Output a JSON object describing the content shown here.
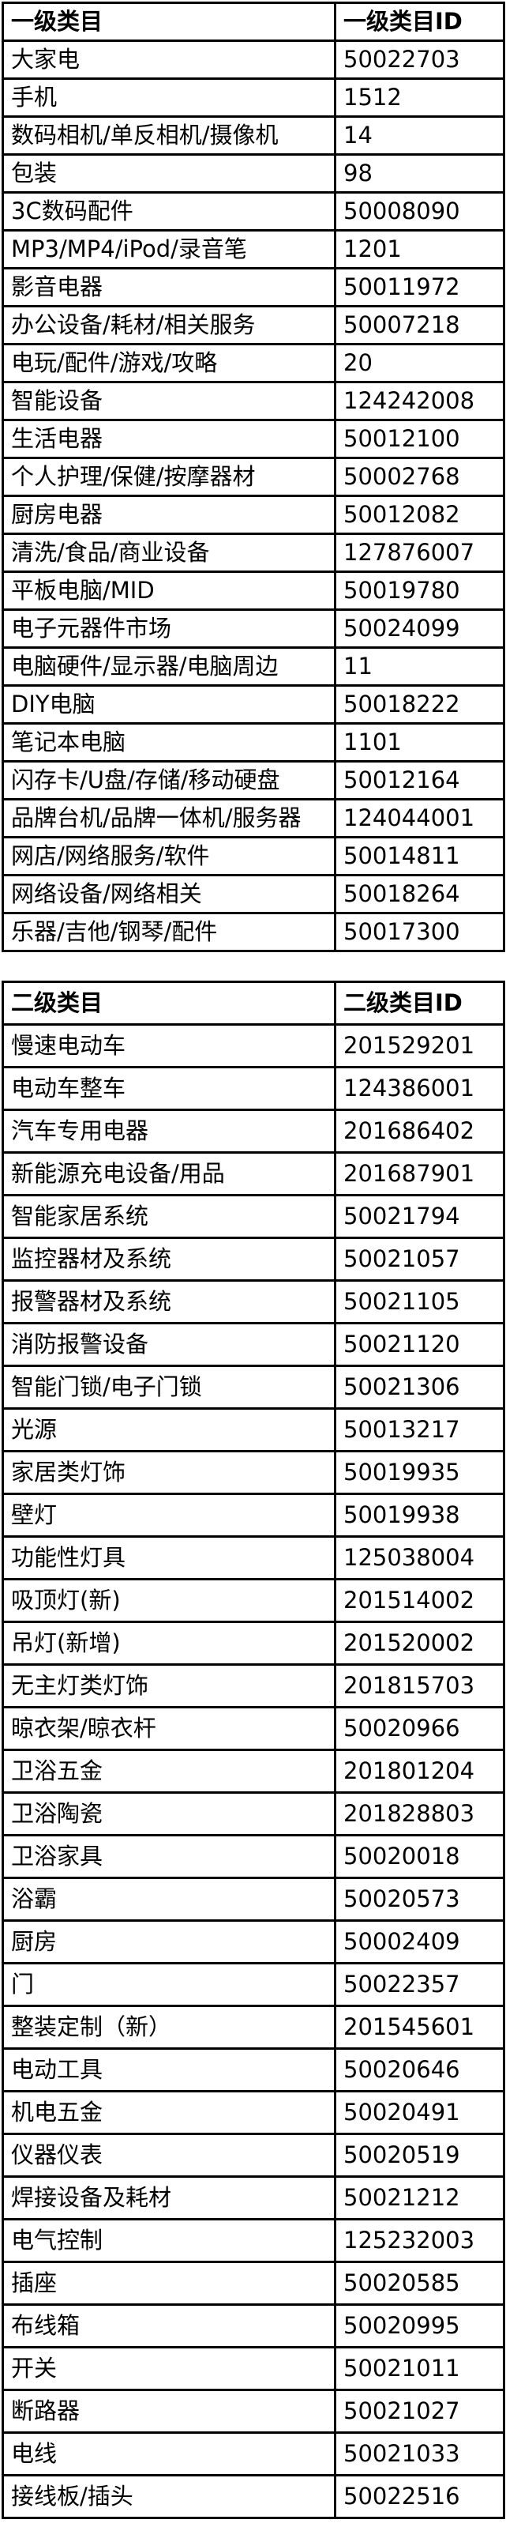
{
  "tables": [
    {
      "name_header": "一级类目",
      "id_header": "一级类目ID",
      "rows": [
        {
          "name": "大家电",
          "id": "50022703"
        },
        {
          "name": "手机",
          "id": "1512"
        },
        {
          "name": "数码相机/单反相机/摄像机",
          "id": "14"
        },
        {
          "name": "包装",
          "id": "98"
        },
        {
          "name": "3C数码配件",
          "id": "50008090"
        },
        {
          "name": "MP3/MP4/iPod/录音笔",
          "id": "1201"
        },
        {
          "name": "影音电器",
          "id": "50011972"
        },
        {
          "name": "办公设备/耗材/相关服务",
          "id": "50007218"
        },
        {
          "name": "电玩/配件/游戏/攻略",
          "id": "20"
        },
        {
          "name": "智能设备",
          "id": "124242008"
        },
        {
          "name": "生活电器",
          "id": "50012100"
        },
        {
          "name": "个人护理/保健/按摩器材",
          "id": "50002768"
        },
        {
          "name": "厨房电器",
          "id": "50012082"
        },
        {
          "name": "清洗/食品/商业设备",
          "id": "127876007"
        },
        {
          "name": "平板电脑/MID",
          "id": "50019780"
        },
        {
          "name": "电子元器件市场",
          "id": "50024099"
        },
        {
          "name": "电脑硬件/显示器/电脑周边",
          "id": "11"
        },
        {
          "name": "DIY电脑",
          "id": "50018222"
        },
        {
          "name": "笔记本电脑",
          "id": "1101"
        },
        {
          "name": "闪存卡/U盘/存储/移动硬盘",
          "id": "50012164"
        },
        {
          "name": "品牌台机/品牌一体机/服务器",
          "id": "124044001"
        },
        {
          "name": "网店/网络服务/软件",
          "id": "50014811"
        },
        {
          "name": "网络设备/网络相关",
          "id": "50018264"
        },
        {
          "name": "乐器/吉他/钢琴/配件",
          "id": "50017300"
        }
      ]
    },
    {
      "name_header": "二级类目",
      "id_header": "二级类目ID",
      "rows": [
        {
          "name": "慢速电动车",
          "id": "201529201"
        },
        {
          "name": "电动车整车",
          "id": "124386001"
        },
        {
          "name": "汽车专用电器",
          "id": "201686402"
        },
        {
          "name": "新能源充电设备/用品",
          "id": "201687901"
        },
        {
          "name": "智能家居系统",
          "id": "50021794"
        },
        {
          "name": "监控器材及系统",
          "id": "50021057"
        },
        {
          "name": "报警器材及系统",
          "id": "50021105"
        },
        {
          "name": "消防报警设备",
          "id": "50021120"
        },
        {
          "name": "智能门锁/电子门锁",
          "id": "50021306"
        },
        {
          "name": "光源",
          "id": "50013217"
        },
        {
          "name": "家居类灯饰",
          "id": "50019935"
        },
        {
          "name": "壁灯",
          "id": "50019938"
        },
        {
          "name": "功能性灯具",
          "id": "125038004"
        },
        {
          "name": "吸顶灯(新)",
          "id": "201514002"
        },
        {
          "name": "吊灯(新增)",
          "id": "201520002"
        },
        {
          "name": "无主灯类灯饰",
          "id": "201815703"
        },
        {
          "name": "晾衣架/晾衣杆",
          "id": "50020966"
        },
        {
          "name": "卫浴五金",
          "id": "201801204"
        },
        {
          "name": "卫浴陶瓷",
          "id": "201828803"
        },
        {
          "name": "卫浴家具",
          "id": "50020018"
        },
        {
          "name": "浴霸",
          "id": "50020573"
        },
        {
          "name": "厨房",
          "id": "50002409"
        },
        {
          "name": "门",
          "id": "50022357"
        },
        {
          "name": "整装定制（新）",
          "id": "201545601"
        },
        {
          "name": "电动工具",
          "id": "50020646"
        },
        {
          "name": "机电五金",
          "id": "50020491"
        },
        {
          "name": "仪器仪表",
          "id": "50020519"
        },
        {
          "name": "焊接设备及耗材",
          "id": "50021212"
        },
        {
          "name": "电气控制",
          "id": "125232003"
        },
        {
          "name": "插座",
          "id": "50020585"
        },
        {
          "name": "布线箱",
          "id": "50020995"
        },
        {
          "name": "开关",
          "id": "50021011"
        },
        {
          "name": "断路器",
          "id": "50021027"
        },
        {
          "name": "电线",
          "id": "50021033"
        },
        {
          "name": "接线板/插头",
          "id": "50022516"
        }
      ]
    }
  ]
}
